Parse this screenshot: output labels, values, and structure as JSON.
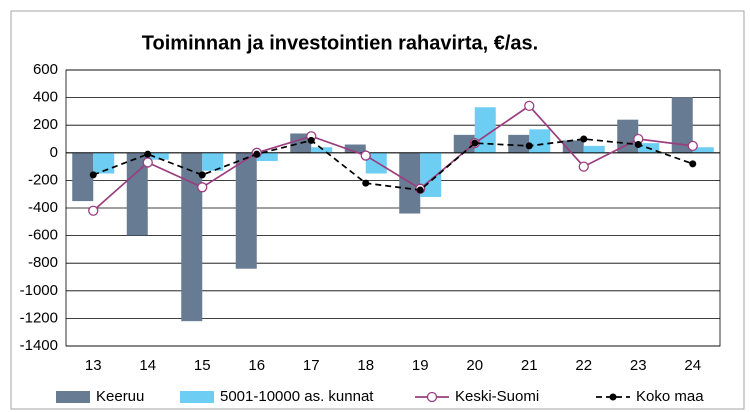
{
  "chart_data": {
    "type": "bar",
    "title": "Toiminnan ja investointien rahavirta, €/as.",
    "categories": [
      "13",
      "14",
      "15",
      "16",
      "17",
      "18",
      "19",
      "20",
      "21",
      "22",
      "23",
      "24"
    ],
    "series": [
      {
        "name": "Keeruu",
        "type": "bar",
        "color": "#677b92",
        "values": [
          -350,
          -600,
          -1220,
          -840,
          140,
          60,
          -440,
          130,
          130,
          90,
          240,
          400
        ]
      },
      {
        "name": "5001-10000 as. kunnat",
        "type": "bar",
        "color": "#6dcdf2",
        "values": [
          -150,
          -50,
          -130,
          -60,
          40,
          -150,
          -320,
          330,
          170,
          50,
          70,
          40
        ]
      },
      {
        "name": "Keski-Suomi",
        "type": "line",
        "color": "#9b3e80",
        "marker": "open-circle",
        "values": [
          -420,
          -70,
          -250,
          0,
          120,
          -20,
          -260,
          70,
          340,
          -100,
          100,
          50
        ]
      },
      {
        "name": "Koko maa",
        "type": "line",
        "color": "#000000",
        "marker": "dot",
        "line_style": "dashed",
        "values": [
          -160,
          -10,
          -160,
          -10,
          90,
          -220,
          -270,
          70,
          50,
          100,
          60,
          -80
        ]
      }
    ],
    "ylim": [
      -1400,
      600
    ],
    "yticks": [
      600,
      400,
      200,
      0,
      -200,
      -400,
      -600,
      -800,
      -1000,
      -1200,
      -1400
    ],
    "grid": true
  }
}
